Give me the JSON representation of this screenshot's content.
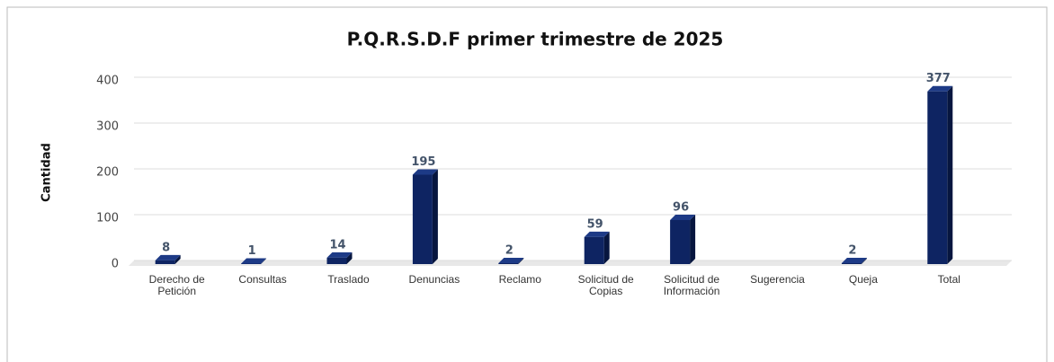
{
  "chart_data": {
    "type": "bar",
    "title": "P.Q.R.S.D.F primer trimestre de 2025",
    "y_label": "Cantidad",
    "categories": [
      "Derecho de Petición",
      "Consultas",
      "Traslado",
      "Denuncias",
      "Reclamo",
      "Solicitud de Copias",
      "Solicitud de Información",
      "Sugerencia",
      "Queja",
      "Total"
    ],
    "values": [
      8,
      1,
      14,
      195,
      2,
      59,
      96,
      null,
      2,
      377
    ],
    "color": "#0e2462",
    "ylim": [
      0,
      400
    ],
    "yticks": [
      0,
      100,
      200,
      300,
      400
    ],
    "grid": true
  }
}
